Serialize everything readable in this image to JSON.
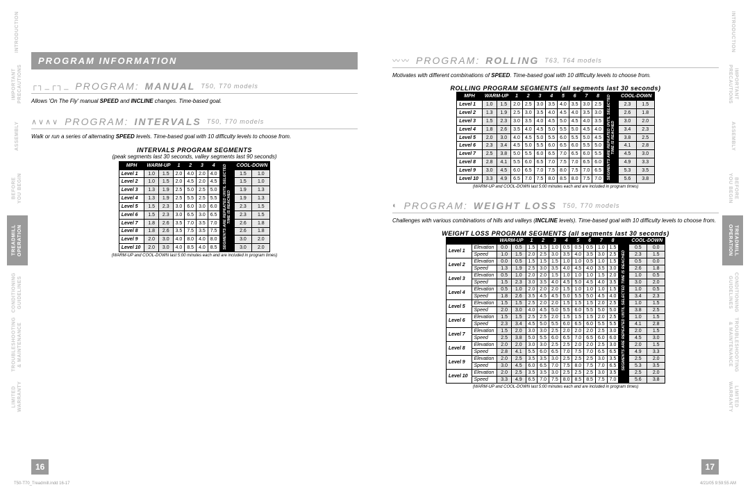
{
  "tabs_left": [
    "INTRODUCTION",
    "IMPORTANT\nPRECAUTIONS",
    "ASSEMBLY",
    "BEFORE\nYOU BEGIN",
    "TREADMILL\nOPERATION",
    "CONDITIONING\nGUIDELINES",
    "TROUBLESHOOTING\n& MAINTENANCE",
    "LIMITED\nWARRANTY"
  ],
  "tabs_right": [
    "INTRODUCTION",
    "IMPORTANT\nPRECAUTIONS",
    "ASSEMBLY",
    "BEFORE\nYOU BEGIN",
    "TREADMILL\nOPERATION",
    "CONDITIONING\nGUIDELINES",
    "TROUBLESHOOTING\n& MAINTENANCE",
    "LIMITED\nWARRANTY"
  ],
  "active_tab_index": 4,
  "page_left_num": "16",
  "page_right_num": "17",
  "footer_left": "T50-T70_Treadmill.indd   16-17",
  "footer_right": "4/21/05   9:59:55 AM",
  "left": {
    "header": "PROGRAM INFORMATION",
    "manual": {
      "title_pre": "PROGRAM:",
      "title_main": "MANUAL",
      "models": "T50, T70 models",
      "descr": "Allows 'On The Fly' manual SPEED and INCLINE changes. Time-based goal."
    },
    "intervals": {
      "title_pre": "PROGRAM:",
      "title_main": "INTERVALS",
      "models": "T50, T70 models",
      "descr": "Walk or run a series of alternating SPEED levels. Time-based goal with 10 difficulty levels to choose from.",
      "table_title": "INTERVALS PROGRAM SEGMENTS",
      "table_sub": "(peak segments last 30 seconds, valley segments last 90 seconds)",
      "note": "(WARM-UP and COOL-DOWN last 5:00 minutes each and are included in program times)",
      "cols": [
        "MPH",
        "WARM-UP",
        "1",
        "2",
        "3",
        "4",
        "COOL-DOWN"
      ],
      "seg_label": "SEGMENTS ARE REPEATED UNTIL SELECTED\nTIME IS REACHED",
      "rows": [
        [
          "Level 1",
          "1.0",
          "1.5",
          "2.0",
          "4.0",
          "2.0",
          "4.0",
          "1.5",
          "1.0"
        ],
        [
          "Level 2",
          "1.0",
          "1.5",
          "2.0",
          "4.5",
          "2.0",
          "4.5",
          "1.5",
          "1.0"
        ],
        [
          "Level 3",
          "1.3",
          "1.9",
          "2.5",
          "5.0",
          "2.5",
          "5.0",
          "1.9",
          "1.3"
        ],
        [
          "Level 4",
          "1.3",
          "1.9",
          "2.5",
          "5.5",
          "2.5",
          "5.5",
          "1.9",
          "1.3"
        ],
        [
          "Level 5",
          "1.5",
          "2.3",
          "3.0",
          "6.0",
          "3.0",
          "6.0",
          "2.3",
          "1.5"
        ],
        [
          "Level 6",
          "1.5",
          "2.3",
          "3.0",
          "6.5",
          "3.0",
          "6.5",
          "2.3",
          "1.5"
        ],
        [
          "Level 7",
          "1.8",
          "2.6",
          "3.5",
          "7.0",
          "3.5",
          "7.0",
          "2.6",
          "1.8"
        ],
        [
          "Level 8",
          "1.8",
          "2.6",
          "3.5",
          "7.5",
          "3.5",
          "7.5",
          "2.6",
          "1.8"
        ],
        [
          "Level 9",
          "2.0",
          "3.0",
          "4.0",
          "8.0",
          "4.0",
          "8.0",
          "3.0",
          "2.0"
        ],
        [
          "Level 10",
          "2.0",
          "3.0",
          "4.0",
          "8.5",
          "4.0",
          "8.5",
          "3.0",
          "2.0"
        ]
      ]
    }
  },
  "right": {
    "rolling": {
      "title_pre": "PROGRAM:",
      "title_main": "ROLLING",
      "models": "T63, T64 models",
      "descr": "Motivates with different combinations of SPEED. Time-based goal with 10 difficulty levels to choose from.",
      "table_title": "ROLLING PROGRAM SEGMENTS (all segments last 30 seconds)",
      "note": "(WARM-UP and COOL-DOWN last 5:00 minutes each and are included in program times)",
      "cols": [
        "MPH",
        "WARM-UP",
        "1",
        "2",
        "3",
        "4",
        "5",
        "6",
        "7",
        "8",
        "COOL-DOWN"
      ],
      "seg_label": "SEGMENTS ARE REPEATED UNTIL SELECTED\nTIME IS REACHED",
      "rows": [
        [
          "Level 1",
          "1.0",
          "1.5",
          "2.0",
          "2.5",
          "3.0",
          "3.5",
          "4.0",
          "3.5",
          "3.0",
          "2.5",
          "2.3",
          "1.5"
        ],
        [
          "Level 2",
          "1.3",
          "1.9",
          "2.5",
          "3.0",
          "3.5",
          "4.0",
          "4.5",
          "4.0",
          "3.5",
          "3.0",
          "2.6",
          "1.8"
        ],
        [
          "Level 3",
          "1.5",
          "2.3",
          "3.0",
          "3.5",
          "4.0",
          "4.5",
          "5.0",
          "4.5",
          "4.0",
          "3.5",
          "3.0",
          "2.0"
        ],
        [
          "Level 4",
          "1.8",
          "2.6",
          "3.5",
          "4.0",
          "4.5",
          "5.0",
          "5.5",
          "5.0",
          "4.5",
          "4.0",
          "3.4",
          "2.3"
        ],
        [
          "Level 5",
          "2.0",
          "3.0",
          "4.0",
          "4.5",
          "5.0",
          "5.5",
          "6.0",
          "5.5",
          "5.0",
          "4.5",
          "3.8",
          "2.5"
        ],
        [
          "Level 6",
          "2.3",
          "3.4",
          "4.5",
          "5.0",
          "5.5",
          "6.0",
          "6.5",
          "6.0",
          "5.5",
          "5.0",
          "4.1",
          "2.8"
        ],
        [
          "Level 7",
          "2.5",
          "3.8",
          "5.0",
          "5.5",
          "6.0",
          "6.5",
          "7.0",
          "6.5",
          "6.0",
          "5.5",
          "4.5",
          "3.0"
        ],
        [
          "Level 8",
          "2.8",
          "4.1",
          "5.5",
          "6.0",
          "6.5",
          "7.0",
          "7.5",
          "7.0",
          "6.5",
          "6.0",
          "4.9",
          "3.3"
        ],
        [
          "Level 9",
          "3.0",
          "4.5",
          "6.0",
          "6.5",
          "7.0",
          "7.5",
          "8.0",
          "7.5",
          "7.0",
          "6.5",
          "5.3",
          "3.5"
        ],
        [
          "Level 10",
          "3.3",
          "4.9",
          "6.5",
          "7.0",
          "7.5",
          "8.0",
          "8.5",
          "8.0",
          "7.5",
          "7.0",
          "5.6",
          "3.8"
        ]
      ]
    },
    "weight": {
      "title_pre": "PROGRAM:",
      "title_main": "WEIGHT LOSS",
      "models": "T50, T70 models",
      "descr": "Challenges with various combinations of hills and valleys (INCLINE levels). Time-based goal with 10 difficulty levels to choose from.",
      "table_title": "WEIGHT LOSS PROGRAM SEGMENTS (all segments last 30 seconds)",
      "note": "(WARM-UP and COOL-DOWN last 5:00 minutes each and are included in program times)",
      "cols": [
        "",
        "WARM-UP",
        "1",
        "2",
        "3",
        "4",
        "5",
        "6",
        "7",
        "8",
        "COOL-DOWN"
      ],
      "seg_label": "SEGMENTS ARE REPEATED UNTIL SELECTED TIME IS REACHED",
      "level_labels": [
        "Level 1",
        "Level 2",
        "Level 3",
        "Level 4",
        "Level 5",
        "Level 6",
        "Level 7",
        "Level 8",
        "Level 9",
        "Level 10"
      ],
      "sub_labels": [
        "Elevation",
        "Speed"
      ],
      "rows": [
        [
          [
            "0.0",
            "0.5",
            "1.5",
            "1.5",
            "1.0",
            "0.5",
            "0.5",
            "0.5",
            "1.0",
            "1.5",
            "0.5",
            "0.0"
          ],
          [
            "1.0",
            "1.5",
            "2.0",
            "2.5",
            "3.0",
            "3.5",
            "4.0",
            "3.5",
            "3.0",
            "2.5",
            "2.3",
            "1.5"
          ]
        ],
        [
          [
            "0.0",
            "0.5",
            "1.5",
            "1.5",
            "1.5",
            "1.0",
            "1.0",
            "0.5",
            "1.0",
            "1.5",
            "0.5",
            "0.0"
          ],
          [
            "1.3",
            "1.9",
            "2.5",
            "3.0",
            "3.5",
            "4.0",
            "4.5",
            "4.0",
            "3.5",
            "3.0",
            "2.6",
            "1.8"
          ]
        ],
        [
          [
            "0.5",
            "1.0",
            "2.0",
            "2.0",
            "1.5",
            "1.0",
            "1.0",
            "1.0",
            "1.5",
            "2.0",
            "1.0",
            "0.5"
          ],
          [
            "1.5",
            "2.3",
            "3.0",
            "3.5",
            "4.0",
            "4.5",
            "5.0",
            "4.5",
            "4.0",
            "3.5",
            "3.0",
            "2.0"
          ]
        ],
        [
          [
            "0.5",
            "1.0",
            "2.0",
            "2.0",
            "2.0",
            "1.5",
            "1.0",
            "1.0",
            "1.0",
            "1.5",
            "1.0",
            "0.5"
          ],
          [
            "1.8",
            "2.6",
            "3.5",
            "4.5",
            "4.5",
            "5.0",
            "5.5",
            "5.0",
            "4.5",
            "4.0",
            "3.4",
            "2.3"
          ]
        ],
        [
          [
            "1.5",
            "1.5",
            "2.5",
            "2.0",
            "2.0",
            "1.5",
            "1.5",
            "1.5",
            "2.0",
            "2.5",
            "1.0",
            "1.5"
          ],
          [
            "2.0",
            "3.0",
            "4.0",
            "4.5",
            "5.0",
            "5.5",
            "6.0",
            "5.5",
            "5.0",
            "5.0",
            "3.8",
            "2.5"
          ]
        ],
        [
          [
            "1.5",
            "1.5",
            "2.5",
            "2.5",
            "2.0",
            "1.5",
            "1.5",
            "1.5",
            "2.0",
            "2.5",
            "1.0",
            "1.5"
          ],
          [
            "2.3",
            "3.4",
            "4.5",
            "5.0",
            "5.5",
            "6.0",
            "6.5",
            "6.0",
            "5.5",
            "5.5",
            "4.1",
            "2.8"
          ]
        ],
        [
          [
            "1.5",
            "2.0",
            "3.0",
            "3.0",
            "2.5",
            "2.0",
            "2.0",
            "2.0",
            "2.5",
            "3.0",
            "2.0",
            "1.5"
          ],
          [
            "2.5",
            "3.8",
            "5.0",
            "5.5",
            "6.0",
            "6.5",
            "7.0",
            "6.5",
            "6.0",
            "6.0",
            "4.5",
            "3.0"
          ]
        ],
        [
          [
            "2.0",
            "2.0",
            "3.0",
            "3.0",
            "2.5",
            "2.5",
            "2.0",
            "2.0",
            "2.5",
            "3.0",
            "2.0",
            "1.5"
          ],
          [
            "2.8",
            "4.1",
            "5.5",
            "6.0",
            "6.5",
            "7.0",
            "7.5",
            "7.0",
            "6.5",
            "6.5",
            "4.9",
            "3.3"
          ]
        ],
        [
          [
            "2.0",
            "2.5",
            "3.5",
            "3.5",
            "3.0",
            "2.5",
            "2.5",
            "2.5",
            "3.0",
            "3.5",
            "2.5",
            "2.0"
          ],
          [
            "3.0",
            "4.5",
            "6.0",
            "6.5",
            "7.0",
            "7.5",
            "8.0",
            "7.5",
            "7.0",
            "6.5",
            "5.3",
            "3.5"
          ]
        ],
        [
          [
            "2.0",
            "2.5",
            "3.5",
            "3.5",
            "3.0",
            "2.5",
            "2.5",
            "2.5",
            "3.0",
            "3.5",
            "2.5",
            "2.0"
          ],
          [
            "3.3",
            "4.9",
            "6.5",
            "7.0",
            "7.5",
            "8.0",
            "8.5",
            "8.5",
            "7.5",
            "7.0",
            "5.6",
            "3.8"
          ]
        ]
      ]
    }
  }
}
